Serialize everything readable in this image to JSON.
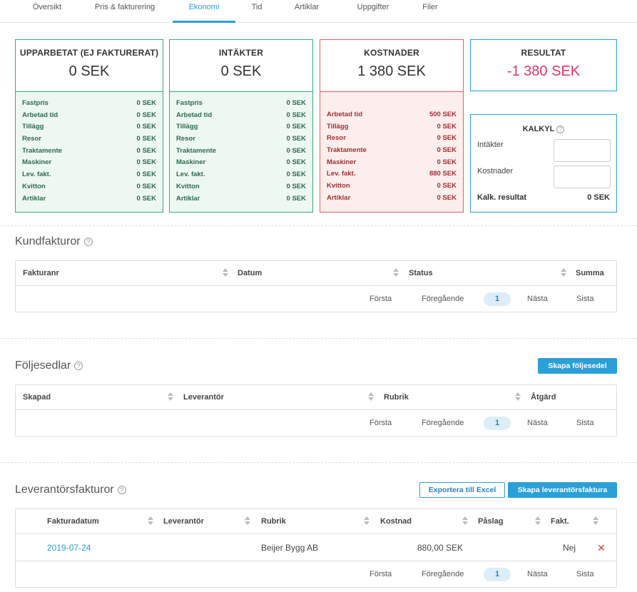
{
  "tabs": [
    "Översikt",
    "Pris & fakturering",
    "Ekonomi",
    "Tid",
    "Artiklar",
    "Uppgifter",
    "Filer"
  ],
  "active_tab": "Ekonomi",
  "cards": {
    "upparbetat": {
      "title": "UPPARBETAT (EJ FAKTURERAT)",
      "value": "0 SEK",
      "rows": [
        {
          "label": "Fastpris",
          "value": "0 SEK"
        },
        {
          "label": "Arbetad tid",
          "value": "0 SEK"
        },
        {
          "label": "Tillägg",
          "value": "0 SEK"
        },
        {
          "label": "Resor",
          "value": "0 SEK"
        },
        {
          "label": "Traktamente",
          "value": "0 SEK"
        },
        {
          "label": "Maskiner",
          "value": "0 SEK"
        },
        {
          "label": "Lev. fakt.",
          "value": "0 SEK"
        },
        {
          "label": "Kvitton",
          "value": "0 SEK"
        },
        {
          "label": "Artiklar",
          "value": "0 SEK"
        }
      ]
    },
    "intakter": {
      "title": "INTÄKTER",
      "value": "0 SEK",
      "rows": [
        {
          "label": "Fastpris",
          "value": "0 SEK"
        },
        {
          "label": "Arbetad tid",
          "value": "0 SEK"
        },
        {
          "label": "Tillägg",
          "value": "0 SEK"
        },
        {
          "label": "Resor",
          "value": "0 SEK"
        },
        {
          "label": "Traktamente",
          "value": "0 SEK"
        },
        {
          "label": "Maskiner",
          "value": "0 SEK"
        },
        {
          "label": "Lev. fakt.",
          "value": "0 SEK"
        },
        {
          "label": "Kvitton",
          "value": "0 SEK"
        },
        {
          "label": "Artiklar",
          "value": "0 SEK"
        }
      ]
    },
    "kostnader": {
      "title": "KOSTNADER",
      "value": "1 380 SEK",
      "rows": [
        {
          "label": "Arbetad tid",
          "value": "500 SEK"
        },
        {
          "label": "Tillägg",
          "value": "0 SEK"
        },
        {
          "label": "Resor",
          "value": "0 SEK"
        },
        {
          "label": "Traktamente",
          "value": "0 SEK"
        },
        {
          "label": "Maskiner",
          "value": "0 SEK"
        },
        {
          "label": "Lev. fakt.",
          "value": "880 SEK"
        },
        {
          "label": "Kvitton",
          "value": "0 SEK"
        },
        {
          "label": "Artiklar",
          "value": "0 SEK"
        }
      ]
    },
    "resultat": {
      "title": "RESULTAT",
      "value": "-1 380 SEK"
    },
    "kalkyl": {
      "title": "KALKYL",
      "help": "?",
      "intakter_label": "Intäkter",
      "kostnader_label": "Kostnader",
      "result_label": "Kalk. resultat",
      "result_value": "0 SEK"
    }
  },
  "help_glyph": "?",
  "pager": {
    "first": "Första",
    "prev": "Föregående",
    "page": "1",
    "next": "Nästa",
    "last": "Sista"
  },
  "kundfakturor": {
    "title": "Kundfakturor",
    "columns": [
      "Fakturanr",
      "Datum",
      "Status",
      "Summa"
    ]
  },
  "foljesedlar": {
    "title": "Följesedlar",
    "create_button": "Skapa följesedel",
    "columns": [
      "Skapad",
      "Leverantör",
      "Rubrik",
      "Åtgärd"
    ]
  },
  "leverantorsfakturor": {
    "title": "Leverantörsfakturor",
    "export_button": "Exportera till Excel",
    "create_button": "Skapa leverantörsfaktura",
    "columns": [
      "Fakturadatum",
      "Leverantör",
      "Rubrik",
      "Kostnad",
      "Påslag",
      "Fakt."
    ],
    "rows": [
      {
        "date": "2019-07-24",
        "supplier": "",
        "rubrik": "Beijer Bygg AB",
        "kostnad": "880,00 SEK",
        "paslag": "",
        "fakt": "Nej",
        "delete": "✕"
      }
    ]
  },
  "colors": {
    "accent": "#2a9fd8",
    "green": "#3aa878",
    "red": "#e06060",
    "negative": "#e0336c"
  }
}
